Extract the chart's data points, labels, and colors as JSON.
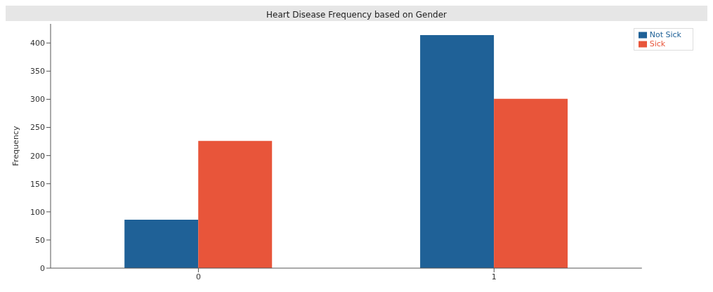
{
  "chart_data": {
    "type": "bar",
    "title": "Heart Disease Frequency based on Gender",
    "ylabel": "Frequency",
    "categories": [
      "0",
      "1"
    ],
    "series": [
      {
        "name": "Not Sick",
        "color": "#1f6197",
        "values": [
          86,
          414
        ]
      },
      {
        "name": "Sick",
        "color": "#e8553a",
        "values": [
          226,
          301
        ]
      }
    ],
    "ylim": [
      0,
      434
    ],
    "yticks": [
      0,
      50,
      100,
      150,
      200,
      250,
      300,
      350,
      400
    ],
    "grid": false,
    "legend": "top right"
  }
}
